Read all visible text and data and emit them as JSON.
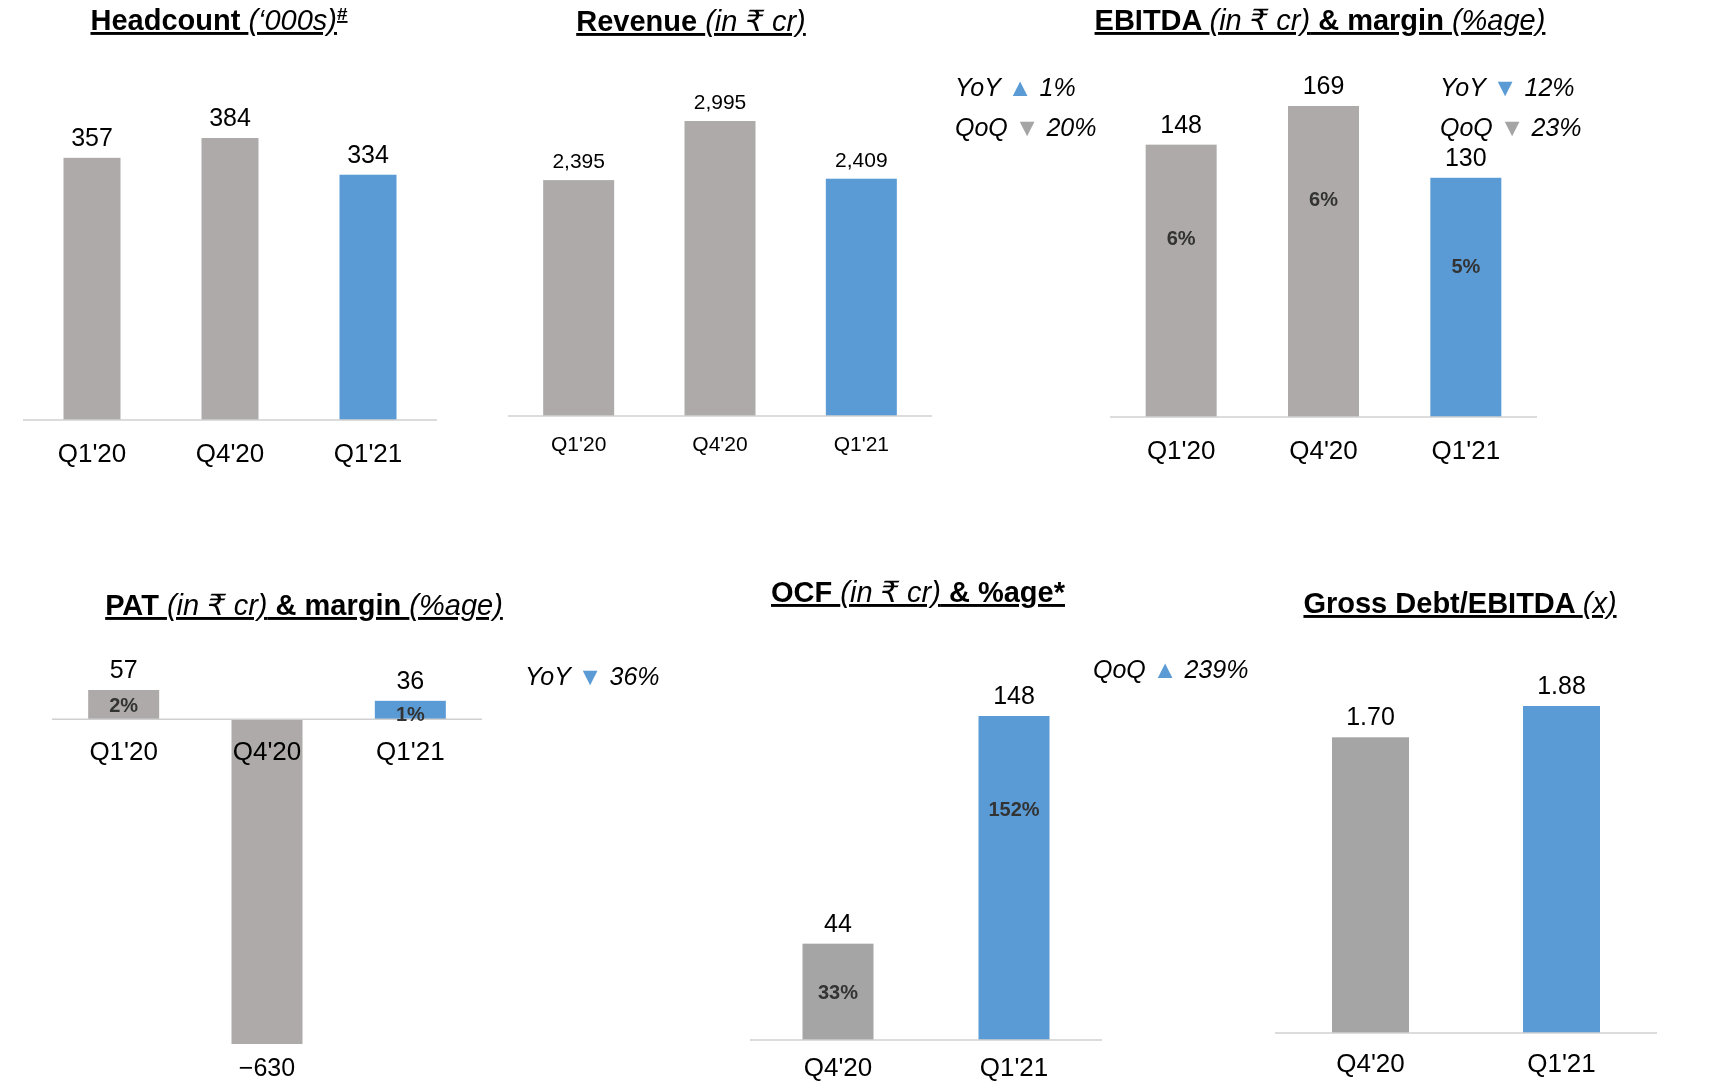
{
  "chart_data": [
    {
      "type": "bar",
      "title": "Headcount (‘000s)$^{#}$",
      "categories": [
        "Q1'20",
        "Q4'20",
        "Q1'21"
      ],
      "values": [
        357,
        384,
        334
      ],
      "colors": [
        "#aeaaaa",
        "#aeaaaa",
        "#5b9bd5"
      ],
      "data_labels": true
    },
    {
      "type": "bar",
      "title": "Revenue (in ₹ cr)",
      "categories": [
        "Q1'20",
        "Q4'20",
        "Q1'21"
      ],
      "values": [
        2395,
        2995,
        2409
      ],
      "value_labels": [
        "2,395",
        "2,995",
        "2,409"
      ],
      "colors": [
        "#aeaaaa",
        "#aeaaaa",
        "#5b9bd5"
      ],
      "annotations": [
        "YoY ▲ 1%",
        "QoQ ▼ 20%"
      ]
    },
    {
      "type": "bar",
      "title": "EBITDA (in ₹ cr) & margin (%age)",
      "categories": [
        "Q1'20",
        "Q4'20",
        "Q1'21"
      ],
      "values": [
        148,
        169,
        130
      ],
      "colors": [
        "#aeaaaa",
        "#aeaaaa",
        "#5b9bd5"
      ],
      "data_labels": true,
      "annotations": [
        "YoY ▼ 12%",
        "QoQ ▼ 23%",
        "6%",
        "6%",
        "5%"
      ]
    },
    {
      "type": "bar",
      "title": "PAT (in ₹ cr) & margin (%age)",
      "categories": [
        "Q1'20",
        "Q4'20",
        "Q1'21"
      ],
      "values": [
        57,
        -630,
        36
      ],
      "colors": [
        "#aeaaaa",
        "#aeaaaa",
        "#5b9bd5"
      ],
      "data_labels": true,
      "annotations": [
        "YoY ▼ 36%",
        "2%",
        "1%"
      ]
    },
    {
      "type": "bar",
      "title": "OCF (in ₹ cr) & %age*",
      "categories": [
        "Q4'20",
        "Q1'21"
      ],
      "values": [
        44,
        148
      ],
      "colors": [
        "#a5a5a5",
        "#5b9bd5"
      ],
      "data_labels": true,
      "annotations": [
        "QoQ ▲ 239%",
        "33%",
        "152%"
      ]
    },
    {
      "type": "bar",
      "title": "Gross Debt/EBITDA (x)",
      "categories": [
        "Q4'20",
        "Q1'21"
      ],
      "values": [
        1.7,
        1.88
      ],
      "value_labels": [
        "1.70",
        "1.88"
      ],
      "colors": [
        "#a5a5a5",
        "#5b9bd5"
      ]
    }
  ]
}
